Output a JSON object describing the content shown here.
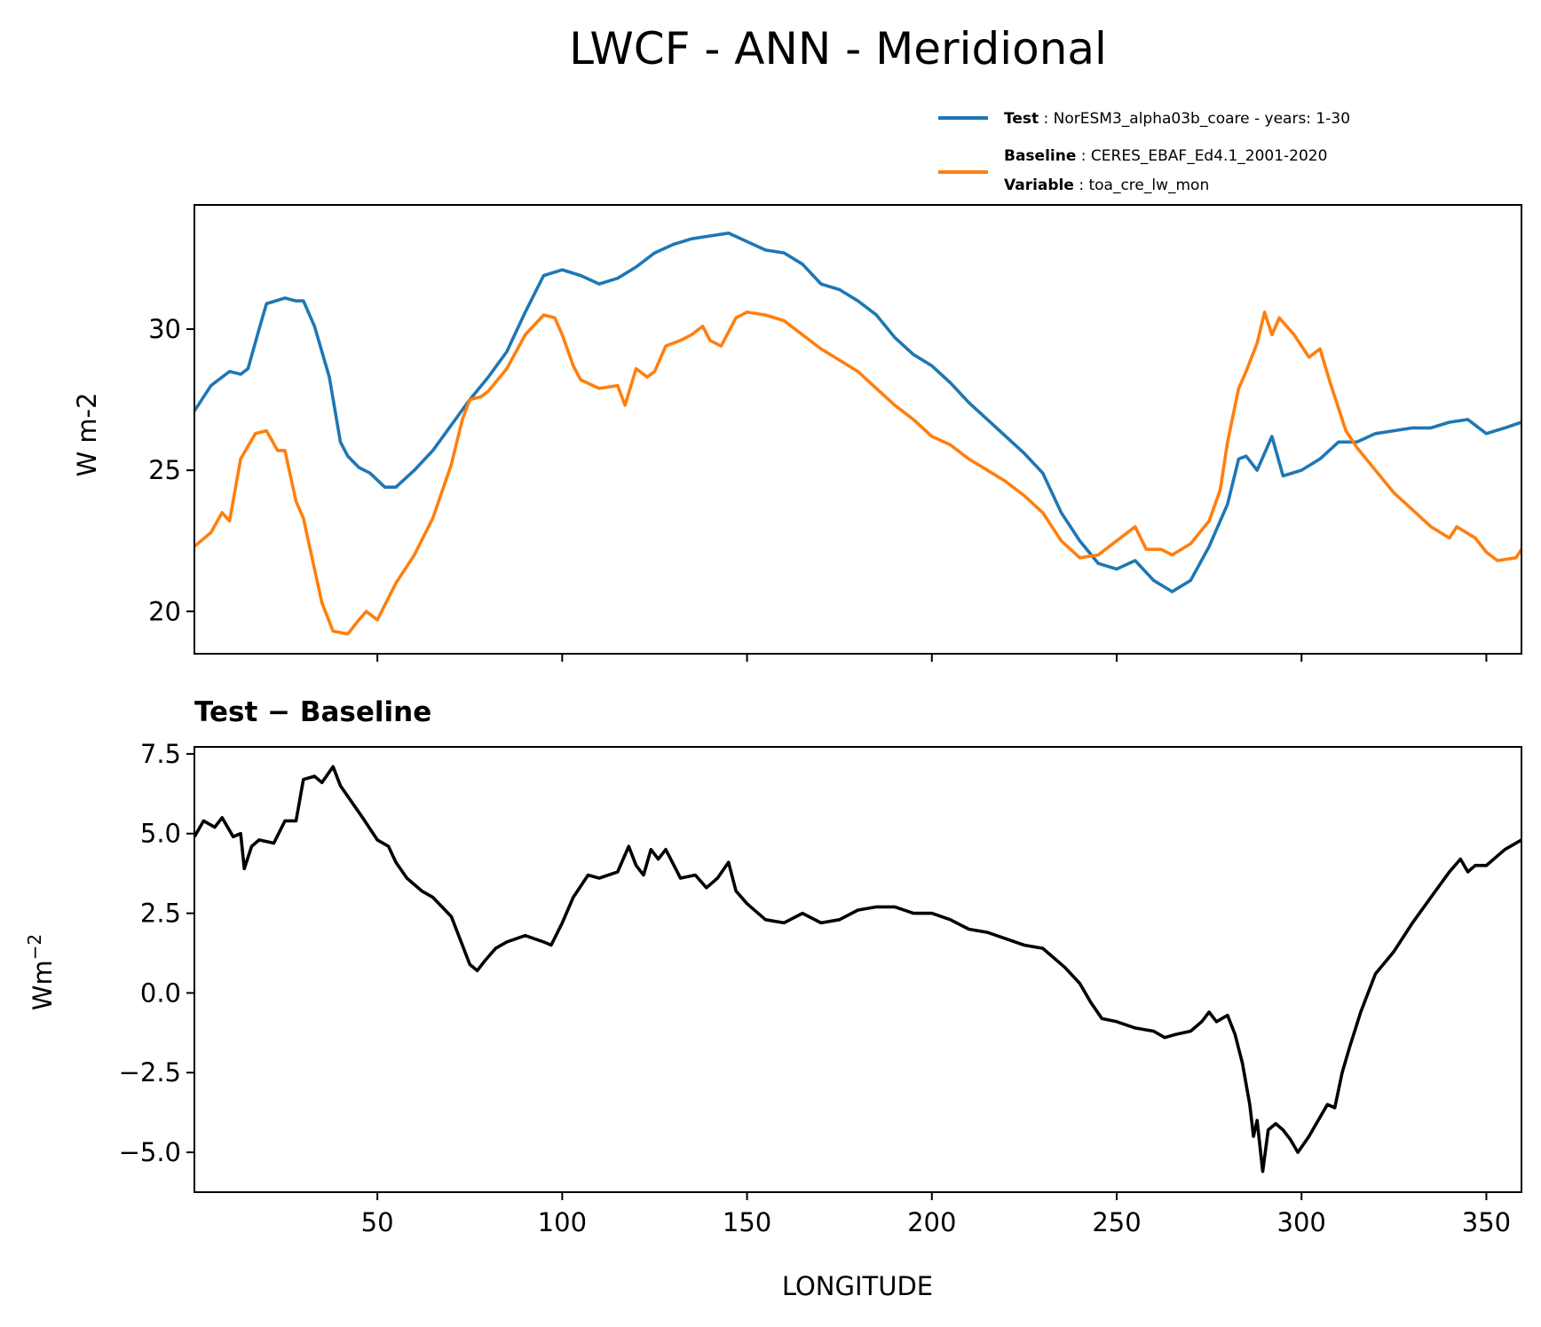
{
  "chart_data": [
    {
      "type": "line",
      "title": "LWCF - ANN - Meridional",
      "xlabel": "",
      "ylabel": "W m-2",
      "xlim": [
        0.5,
        359.5
      ],
      "ylim": [
        18.5,
        34.4
      ],
      "yticks": [
        20,
        25,
        30
      ],
      "ytick_labels": [
        "20",
        "25",
        "30"
      ],
      "xticks": [
        50,
        100,
        150,
        200,
        250,
        300,
        350
      ],
      "grid": false,
      "legend": {
        "placement": "above-right",
        "entries": [
          {
            "series": "Test",
            "key": "Test",
            "sep": " : ",
            "text": "NorESM3_alpha03b_coare - years: 1-30",
            "color": "#1f77b4"
          },
          {
            "series": "Baseline",
            "key": "Baseline",
            "sep": " : ",
            "text": "CERES_EBAF_Ed4.1_2001-2020",
            "key2": "Variable",
            "text2": "toa_cre_lw_mon",
            "color": "#ff7f0e"
          }
        ]
      },
      "series": [
        {
          "name": "Test",
          "color": "#1f77b4",
          "x": [
            0.5,
            5,
            10,
            13,
            15,
            18,
            20,
            25,
            28,
            30,
            33,
            37,
            40,
            42,
            45,
            48,
            52,
            55,
            60,
            65,
            70,
            75,
            80,
            85,
            90,
            95,
            100,
            105,
            110,
            115,
            120,
            125,
            130,
            135,
            140,
            145,
            150,
            155,
            160,
            165,
            170,
            175,
            180,
            185,
            190,
            195,
            200,
            205,
            210,
            215,
            220,
            225,
            230,
            235,
            240,
            245,
            250,
            255,
            260,
            265,
            270,
            275,
            280,
            283,
            285,
            288,
            292,
            295,
            300,
            305,
            310,
            315,
            320,
            325,
            330,
            335,
            340,
            345,
            350,
            355,
            359.5
          ],
          "y": [
            27.1,
            28.0,
            28.5,
            28.4,
            28.6,
            30.0,
            30.9,
            31.1,
            31.0,
            31.0,
            30.1,
            28.3,
            26.0,
            25.5,
            25.1,
            24.9,
            24.4,
            24.4,
            25.0,
            25.7,
            26.6,
            27.5,
            28.3,
            29.2,
            30.6,
            31.9,
            32.1,
            31.9,
            31.6,
            31.8,
            32.2,
            32.7,
            33.0,
            33.2,
            33.3,
            33.4,
            33.1,
            32.8,
            32.7,
            32.3,
            31.6,
            31.4,
            31.0,
            30.5,
            29.7,
            29.1,
            28.7,
            28.1,
            27.4,
            26.8,
            26.2,
            25.6,
            24.9,
            23.5,
            22.5,
            21.7,
            21.5,
            21.8,
            21.1,
            20.7,
            21.1,
            22.3,
            23.8,
            25.4,
            25.5,
            25.0,
            26.2,
            24.8,
            25.0,
            25.4,
            26.0,
            26.0,
            26.3,
            26.4,
            26.5,
            26.5,
            26.7,
            26.8,
            26.3,
            26.5,
            26.7
          ]
        },
        {
          "name": "Baseline",
          "color": "#ff7f0e",
          "x": [
            0.5,
            5,
            8,
            10,
            13,
            17,
            20,
            23,
            25,
            28,
            30,
            33,
            35,
            38,
            42,
            45,
            47,
            50,
            55,
            60,
            65,
            70,
            73,
            75,
            78,
            80,
            85,
            90,
            95,
            98,
            100,
            103,
            105,
            110,
            115,
            117,
            120,
            123,
            125,
            128,
            132,
            135,
            138,
            140,
            143,
            147,
            150,
            155,
            160,
            165,
            170,
            175,
            180,
            185,
            190,
            195,
            200,
            205,
            210,
            215,
            220,
            225,
            230,
            235,
            240,
            245,
            250,
            255,
            258,
            262,
            265,
            270,
            275,
            278,
            280,
            283,
            285,
            288,
            290,
            292,
            294,
            298,
            302,
            305,
            308,
            312,
            315,
            320,
            325,
            330,
            335,
            340,
            342,
            347,
            350,
            353,
            358,
            359.5
          ],
          "y": [
            22.3,
            22.8,
            23.5,
            23.2,
            25.4,
            26.3,
            26.4,
            25.7,
            25.7,
            23.9,
            23.3,
            21.5,
            20.3,
            19.3,
            19.2,
            19.7,
            20.0,
            19.7,
            21.0,
            22.0,
            23.3,
            25.2,
            26.8,
            27.5,
            27.6,
            27.8,
            28.6,
            29.8,
            30.5,
            30.4,
            29.8,
            28.7,
            28.2,
            27.9,
            28.0,
            27.3,
            28.6,
            28.3,
            28.5,
            29.4,
            29.6,
            29.8,
            30.1,
            29.6,
            29.4,
            30.4,
            30.6,
            30.5,
            30.3,
            29.8,
            29.3,
            28.9,
            28.5,
            27.9,
            27.3,
            26.8,
            26.2,
            25.9,
            25.4,
            25.0,
            24.6,
            24.1,
            23.5,
            22.5,
            21.9,
            22.0,
            22.5,
            23.0,
            22.2,
            22.2,
            22.0,
            22.4,
            23.2,
            24.3,
            26.0,
            27.9,
            28.5,
            29.5,
            30.6,
            29.8,
            30.4,
            29.8,
            29.0,
            29.3,
            28.0,
            26.4,
            25.8,
            25.0,
            24.2,
            23.6,
            23.0,
            22.6,
            23.0,
            22.6,
            22.1,
            21.8,
            21.9,
            22.2
          ]
        }
      ]
    },
    {
      "type": "line",
      "title": "Test − Baseline",
      "xlabel": "LONGITUDE",
      "ylabel": "Wm",
      "ylabel_sup": "−2",
      "xlim": [
        0.5,
        359.5
      ],
      "ylim": [
        -6.25,
        7.72
      ],
      "yticks": [
        -5,
        -2.5,
        0,
        2.5,
        5,
        7.5
      ],
      "ytick_labels": [
        "−5.0",
        "−2.5",
        "0.0",
        "2.5",
        "5.0",
        "7.5"
      ],
      "xticks": [
        50,
        100,
        150,
        200,
        250,
        300,
        350
      ],
      "xtick_labels": [
        "50",
        "100",
        "150",
        "200",
        "250",
        "300",
        "350"
      ],
      "grid": false,
      "series": [
        {
          "name": "Test - Baseline",
          "color": "#000000",
          "x": [
            0.5,
            3,
            6,
            8,
            11,
            13,
            14,
            16,
            18,
            22,
            25,
            28,
            30,
            33,
            35,
            38,
            40,
            43,
            46,
            50,
            53,
            55,
            58,
            62,
            65,
            70,
            73,
            75,
            77,
            79,
            82,
            85,
            90,
            95,
            97,
            100,
            103,
            107,
            110,
            115,
            118,
            120,
            122,
            124,
            126,
            128,
            132,
            136,
            139,
            142,
            145,
            147,
            150,
            155,
            160,
            165,
            170,
            175,
            180,
            185,
            190,
            195,
            200,
            205,
            210,
            215,
            220,
            225,
            230,
            233,
            236,
            240,
            243,
            246,
            250,
            255,
            260,
            263,
            266,
            270,
            273,
            275,
            277,
            280,
            282,
            284,
            286,
            287,
            288,
            289.5,
            291,
            293,
            295,
            297,
            299,
            302,
            305,
            307,
            309,
            311,
            313,
            316,
            318,
            320,
            325,
            330,
            335,
            340,
            343,
            345,
            347,
            350,
            352,
            355,
            359.5
          ],
          "y": [
            4.9,
            5.4,
            5.2,
            5.5,
            4.9,
            5.0,
            3.9,
            4.6,
            4.8,
            4.7,
            5.4,
            5.4,
            6.7,
            6.8,
            6.6,
            7.1,
            6.5,
            6.0,
            5.5,
            4.8,
            4.6,
            4.1,
            3.6,
            3.2,
            3.0,
            2.4,
            1.5,
            0.9,
            0.7,
            1.0,
            1.4,
            1.6,
            1.8,
            1.6,
            1.5,
            2.2,
            3.0,
            3.7,
            3.6,
            3.8,
            4.6,
            4.0,
            3.7,
            4.5,
            4.2,
            4.5,
            3.6,
            3.7,
            3.3,
            3.6,
            4.1,
            3.2,
            2.8,
            2.3,
            2.2,
            2.5,
            2.2,
            2.3,
            2.6,
            2.7,
            2.7,
            2.5,
            2.5,
            2.3,
            2.0,
            1.9,
            1.7,
            1.5,
            1.4,
            1.1,
            0.8,
            0.3,
            -0.3,
            -0.8,
            -0.9,
            -1.1,
            -1.2,
            -1.4,
            -1.3,
            -1.2,
            -0.9,
            -0.6,
            -0.9,
            -0.7,
            -1.3,
            -2.2,
            -3.5,
            -4.5,
            -4.0,
            -5.6,
            -4.3,
            -4.1,
            -4.3,
            -4.6,
            -5.0,
            -4.5,
            -3.9,
            -3.5,
            -3.6,
            -2.5,
            -1.7,
            -0.6,
            0.0,
            0.6,
            1.3,
            2.2,
            3.0,
            3.8,
            4.2,
            3.8,
            4.0,
            4.0,
            4.2,
            4.5,
            4.8
          ]
        }
      ]
    }
  ]
}
